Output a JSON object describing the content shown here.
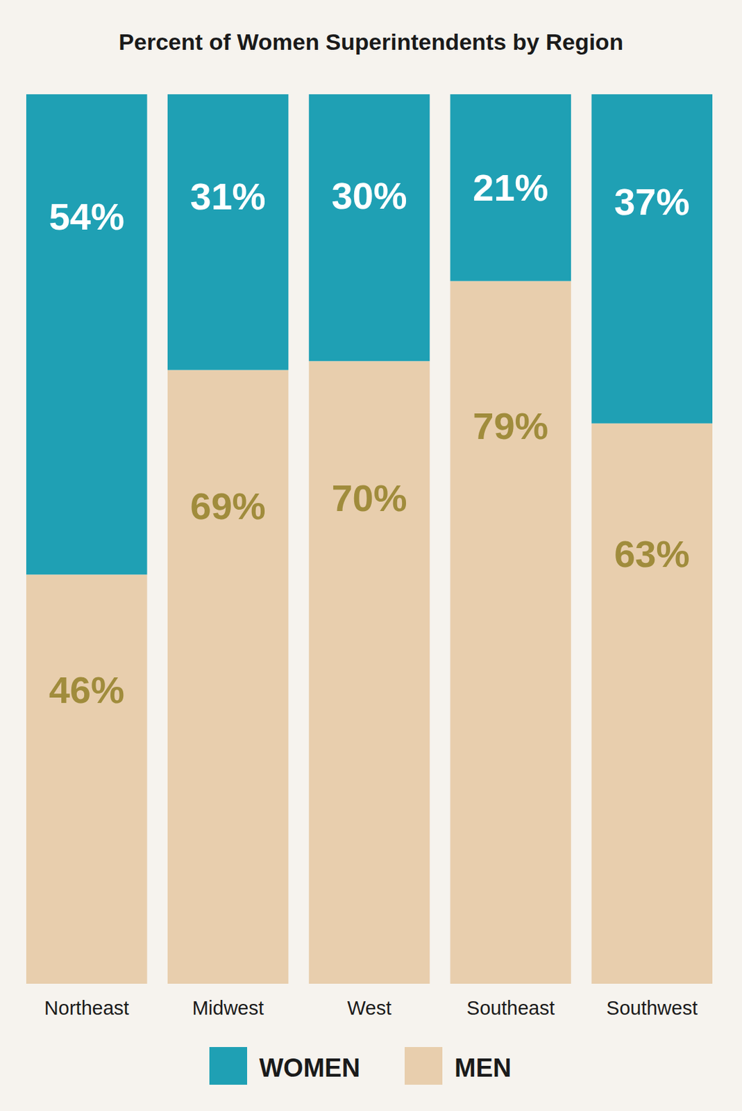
{
  "chart_data": {
    "type": "bar",
    "title": "Percent of Women Superintendents by Region",
    "categories": [
      "Northeast",
      "Midwest",
      "West",
      "Southeast",
      "Southwest"
    ],
    "series": [
      {
        "name": "WOMEN",
        "color": "#1fa0b4",
        "values": [
          54,
          31,
          30,
          21,
          37
        ],
        "value_labels": [
          "54%",
          "31%",
          "30%",
          "21%",
          "37%"
        ]
      },
      {
        "name": "MEN",
        "color": "#e8cead",
        "values": [
          46,
          69,
          70,
          79,
          63
        ],
        "value_labels": [
          "46%",
          "69%",
          "70%",
          "79%",
          "63%"
        ]
      }
    ],
    "ylim": [
      0,
      100
    ],
    "stacked": true,
    "data_labels": true,
    "tick_labels": "x",
    "legend": "bottom"
  }
}
